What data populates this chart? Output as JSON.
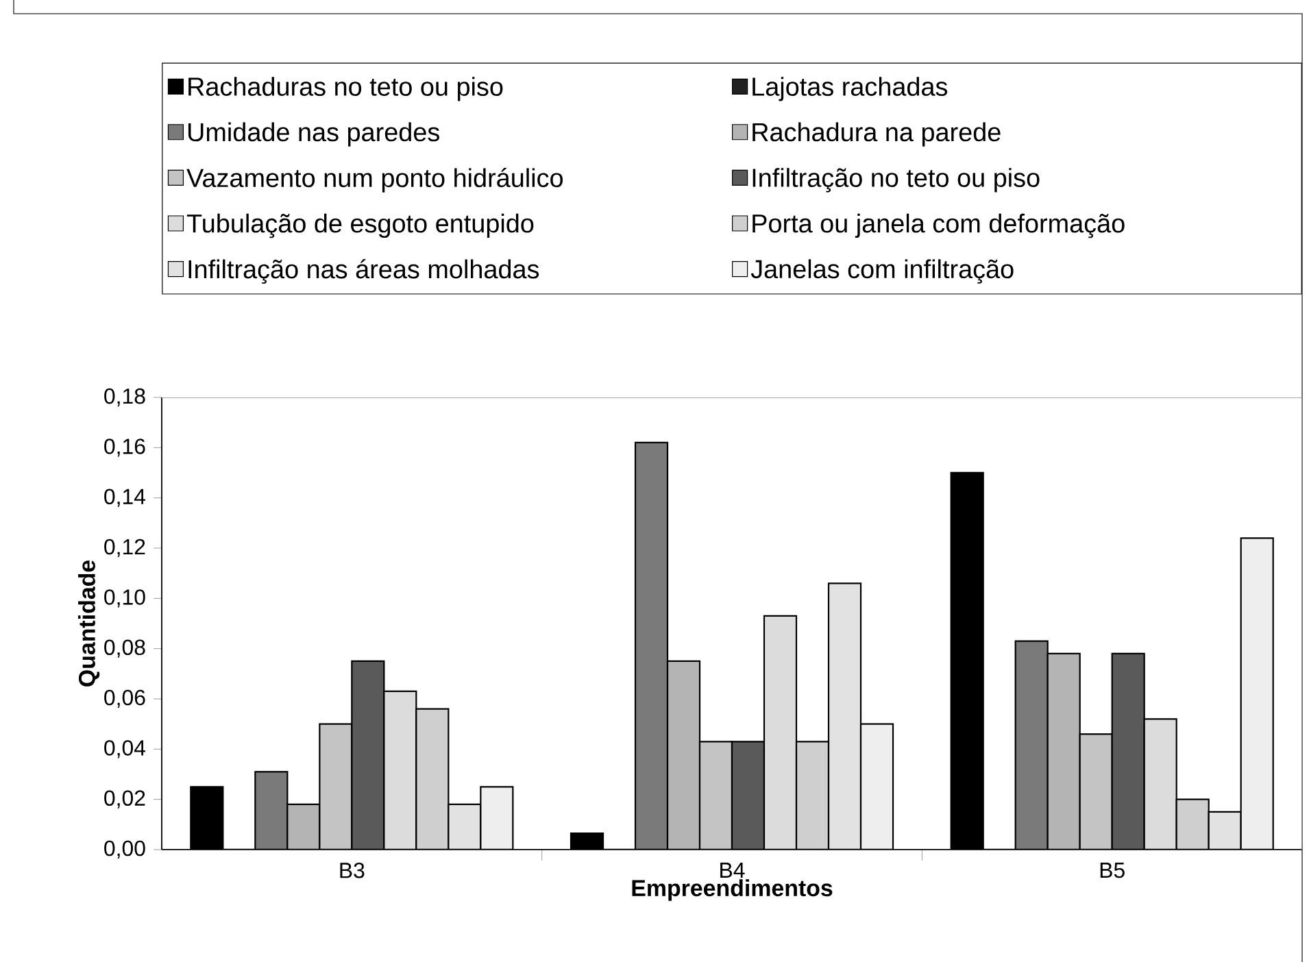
{
  "chart_data": {
    "type": "bar",
    "xlabel": "Empreendimentos",
    "ylabel": "Quantidade",
    "legend": "top",
    "categories": [
      "B3",
      "B4",
      "B5"
    ],
    "ylim": [
      0,
      0.18
    ],
    "yticks": [
      {
        "value": 0,
        "label": "0,00"
      },
      {
        "value": 0.02,
        "label": "0,02"
      },
      {
        "value": 0.04,
        "label": "0,04"
      },
      {
        "value": 0.06,
        "label": "0,06"
      },
      {
        "value": 0.08,
        "label": "0,08"
      },
      {
        "value": 0.1,
        "label": "0,10"
      },
      {
        "value": 0.12,
        "label": "0,12"
      },
      {
        "value": 0.14,
        "label": "0,14"
      },
      {
        "value": 0.16,
        "label": "0,16"
      },
      {
        "value": 0.18,
        "label": "0,18"
      }
    ],
    "series": [
      {
        "name": "Rachaduras no teto ou piso",
        "color": "#000000",
        "values": [
          0.025,
          0.0065,
          0.15
        ]
      },
      {
        "name": "Lajotas rachadas",
        "color": "#202020",
        "values": [
          0,
          0,
          0
        ]
      },
      {
        "name": "Umidade nas paredes",
        "color": "#7a7a7a",
        "values": [
          0.031,
          0.162,
          0.083
        ]
      },
      {
        "name": "Rachadura na parede",
        "color": "#b4b4b4",
        "values": [
          0.018,
          0.075,
          0.078
        ]
      },
      {
        "name": "Vazamento num ponto hidráulico",
        "color": "#c4c4c4",
        "values": [
          0.05,
          0.043,
          0.046
        ]
      },
      {
        "name": "Infiltração no teto ou piso",
        "color": "#5a5a5a",
        "values": [
          0.075,
          0.043,
          0.078
        ]
      },
      {
        "name": "Tubulação de esgoto entupido",
        "color": "#dcdcdc",
        "values": [
          0.063,
          0.093,
          0.052
        ]
      },
      {
        "name": "Porta ou janela com deformação",
        "color": "#cfcfcf",
        "values": [
          0.056,
          0.043,
          0.02
        ]
      },
      {
        "name": "Infiltração nas áreas molhadas",
        "color": "#e2e2e2",
        "values": [
          0.018,
          0.106,
          0.015
        ]
      },
      {
        "name": "Janelas com infiltração",
        "color": "#eeeeee",
        "values": [
          0.025,
          0.05,
          0.124
        ]
      }
    ]
  }
}
